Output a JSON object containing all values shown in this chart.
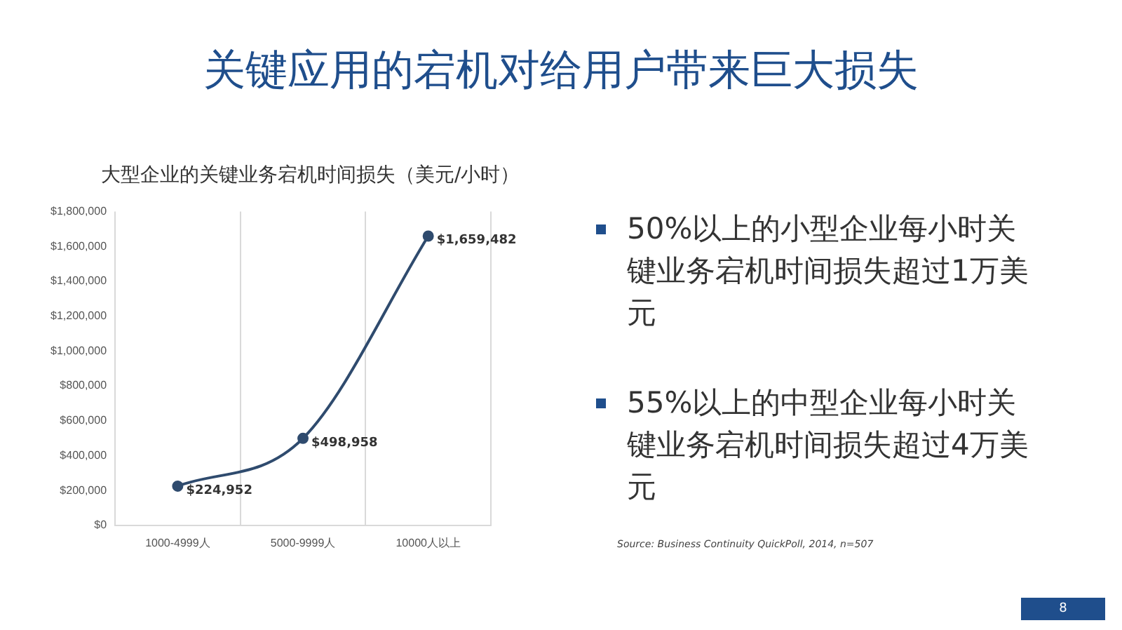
{
  "chart_data": {
    "type": "line",
    "title": "关键应用的宕机对给用户带来巨大损失",
    "subtitle": "大型企业的关键业务宕机时间损失（美元/小时）",
    "categories": [
      "1000-4999人",
      "5000-9999人",
      "10000人以上"
    ],
    "series": [
      {
        "color": "#2f4b6e",
        "values": [
          224952,
          498958,
          1659482
        ],
        "value_labels": [
          "$224,952",
          "$498,958",
          "$1,659,482"
        ]
      }
    ],
    "ylim": [
      0,
      1800000
    ],
    "yticks": [
      {
        "value": 0,
        "label": "$0"
      },
      {
        "value": 200000,
        "label": "$200,000"
      },
      {
        "value": 400000,
        "label": "$400,000"
      },
      {
        "value": 600000,
        "label": "$600,000"
      },
      {
        "value": 800000,
        "label": "$800,000"
      },
      {
        "value": 1000000,
        "label": "$1,000,000"
      },
      {
        "value": 1200000,
        "label": "$1,200,000"
      },
      {
        "value": 1400000,
        "label": "$1,400,000"
      },
      {
        "value": 1600000,
        "label": "$1,600,000"
      },
      {
        "value": 1800000,
        "label": "$1,800,000"
      }
    ],
    "grid": "x",
    "legend": false,
    "marker": "circle",
    "line_style": "solid",
    "annotations": [
      "50%以上的小型企业每小时关键业务宕机时间损失超过1万美元",
      "55%以上的中型企业每小时关键业务宕机时间损失超过4万美元",
      "Source: Business Continuity QuickPoll, 2014, n=507",
      "8"
    ]
  }
}
